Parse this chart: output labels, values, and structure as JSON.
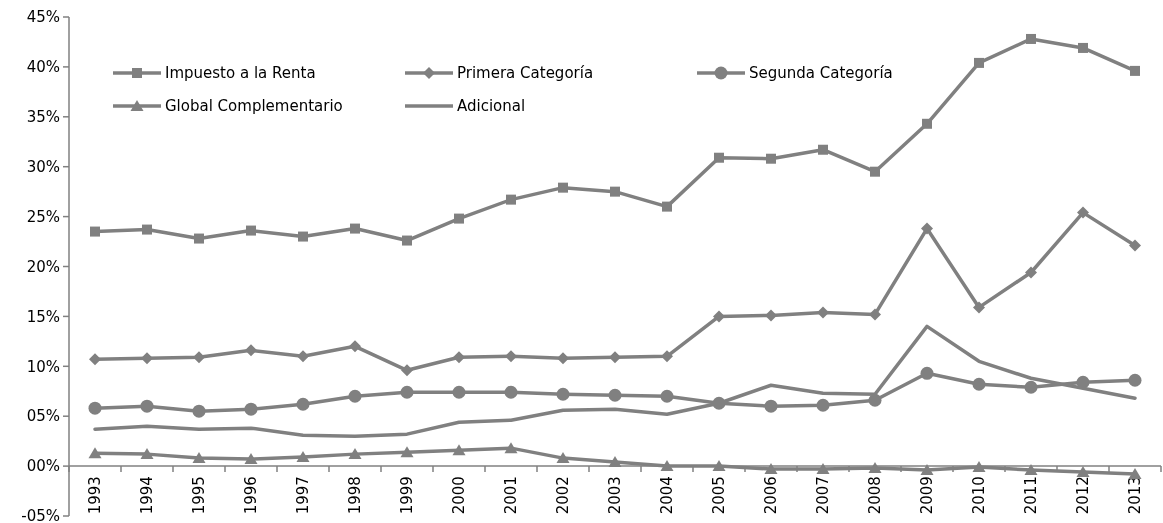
{
  "chart_data": {
    "type": "line",
    "categories": [
      "1993",
      "1994",
      "1995",
      "1996",
      "1997",
      "1998",
      "1999",
      "2000",
      "2001",
      "2002",
      "2003",
      "2004",
      "2005",
      "2006",
      "2007",
      "2008",
      "2009",
      "2010",
      "2011",
      "2012",
      "2013"
    ],
    "ylim": [
      -5,
      45
    ],
    "yticks": [
      {
        "value": -5,
        "label": "-05%"
      },
      {
        "value": 0,
        "label": "00%"
      },
      {
        "value": 5,
        "label": "05%"
      },
      {
        "value": 10,
        "label": "10%"
      },
      {
        "value": 15,
        "label": "15%"
      },
      {
        "value": 20,
        "label": "20%"
      },
      {
        "value": 25,
        "label": "25%"
      },
      {
        "value": 30,
        "label": "30%"
      },
      {
        "value": 35,
        "label": "35%"
      },
      {
        "value": 40,
        "label": "40%"
      },
      {
        "value": 45,
        "label": "45%"
      }
    ],
    "legend": "top left",
    "grid": false,
    "series": [
      {
        "name": "Impuesto a la Renta",
        "color": "#808080",
        "marker": "square",
        "values": [
          23.5,
          23.7,
          22.8,
          23.6,
          23.0,
          23.8,
          22.6,
          24.8,
          26.7,
          27.9,
          27.5,
          26.0,
          30.9,
          30.8,
          31.7,
          29.5,
          34.3,
          40.4,
          42.8,
          41.9,
          39.6
        ]
      },
      {
        "name": "Primera Categoría",
        "color": "#808080",
        "marker": "diamond",
        "values": [
          10.7,
          10.8,
          10.9,
          11.6,
          11.0,
          12.0,
          9.6,
          10.9,
          11.0,
          10.8,
          10.9,
          11.0,
          15.0,
          15.1,
          15.4,
          15.2,
          23.8,
          15.9,
          19.4,
          25.4,
          22.1
        ]
      },
      {
        "name": "Segunda Categoría",
        "color": "#808080",
        "marker": "circle",
        "values": [
          5.8,
          6.0,
          5.5,
          5.7,
          6.2,
          7.0,
          7.4,
          7.4,
          7.4,
          7.2,
          7.1,
          7.0,
          6.3,
          6.0,
          6.1,
          6.6,
          9.3,
          8.2,
          7.9,
          8.4,
          8.6
        ]
      },
      {
        "name": "Global Complementario",
        "color": "#808080",
        "marker": "triangle",
        "values": [
          1.3,
          1.2,
          0.8,
          0.7,
          0.9,
          1.2,
          1.4,
          1.6,
          1.8,
          0.8,
          0.4,
          0.0,
          0.0,
          -0.3,
          -0.3,
          -0.2,
          -0.4,
          -0.1,
          -0.4,
          -0.6,
          -0.8
        ]
      },
      {
        "name": "Adicional",
        "color": "#808080",
        "marker": "none",
        "values": [
          3.7,
          4.0,
          3.7,
          3.8,
          3.1,
          3.0,
          3.2,
          4.4,
          4.6,
          5.6,
          5.7,
          5.2,
          6.3,
          8.1,
          7.3,
          7.2,
          14.0,
          10.5,
          8.8,
          7.8,
          6.8
        ]
      }
    ]
  }
}
